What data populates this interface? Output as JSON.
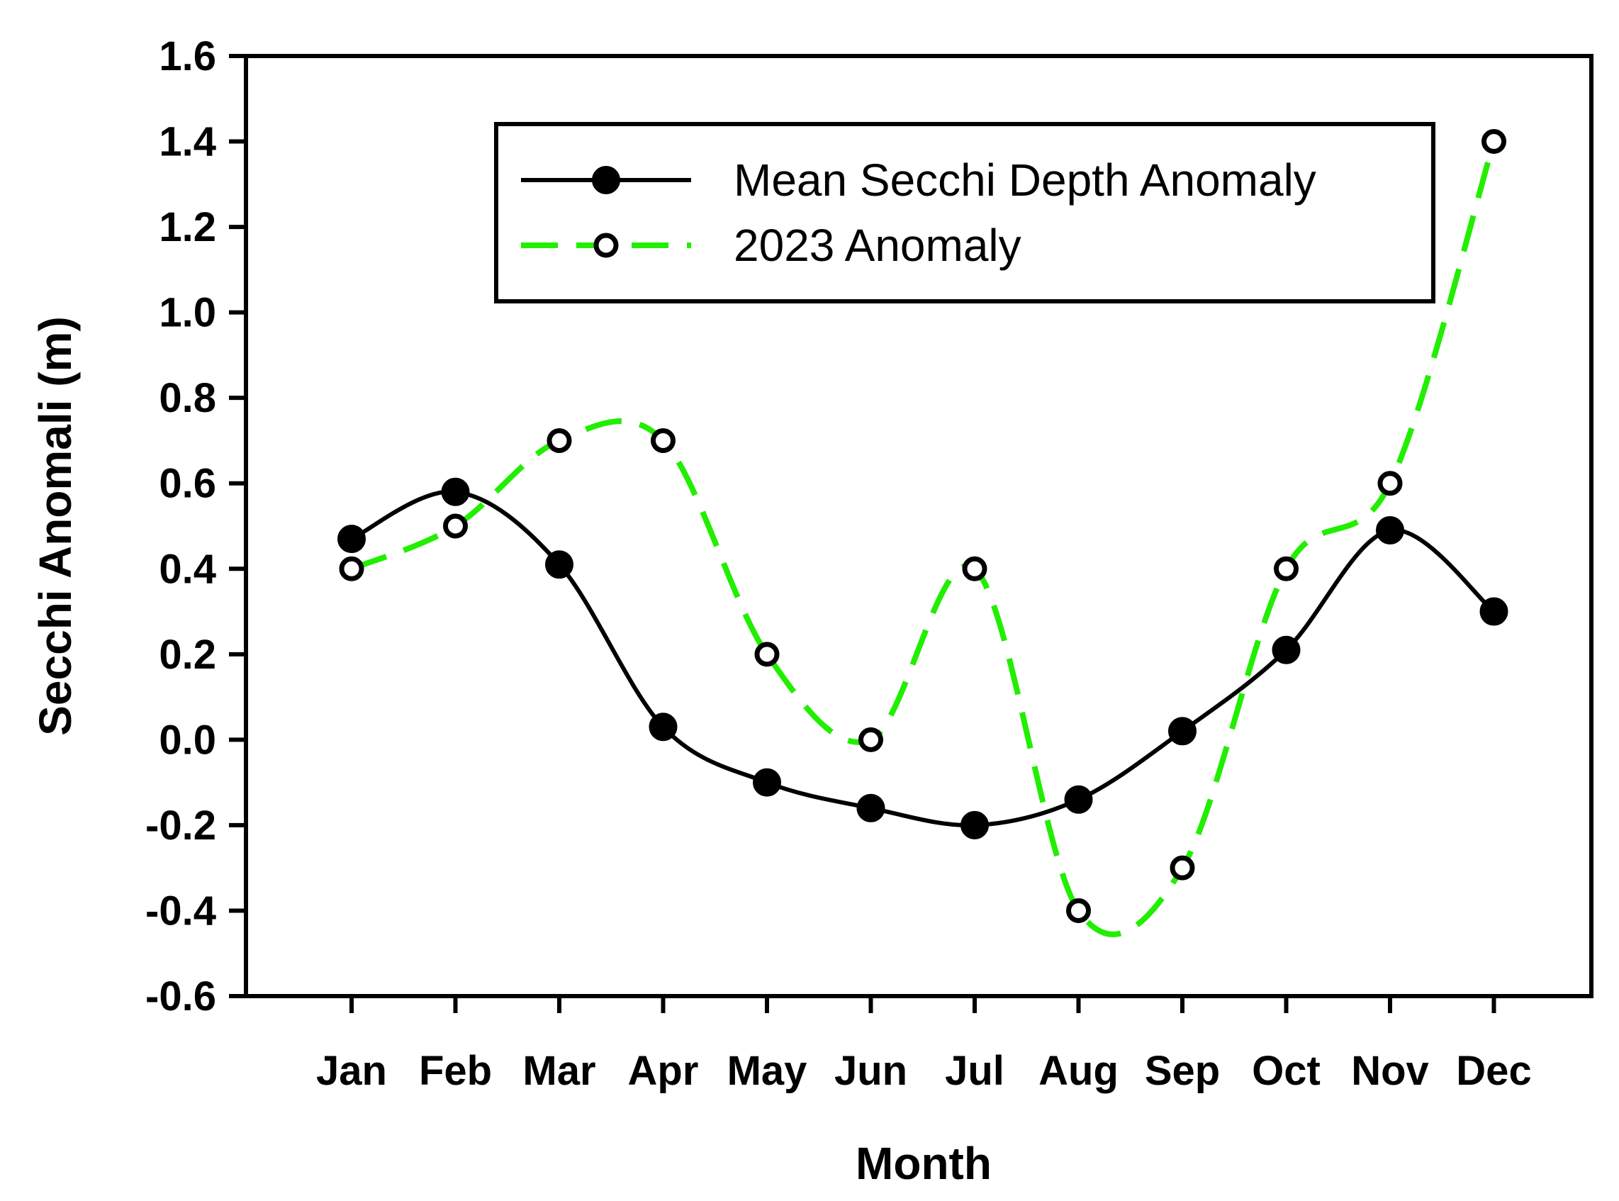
{
  "chart_data": {
    "type": "line",
    "title": "",
    "xlabel": "Month",
    "ylabel": "Secchi Anomali (m)",
    "categories": [
      "Jan",
      "Feb",
      "Mar",
      "Apr",
      "May",
      "Jun",
      "Jul",
      "Aug",
      "Sep",
      "Oct",
      "Nov",
      "Dec"
    ],
    "ylim": [
      -0.6,
      1.6
    ],
    "yticks": [
      "1.6",
      "1.4",
      "1.2",
      "1.0",
      "0.8",
      "0.6",
      "0.4",
      "0.2",
      "0.0",
      "-0.2",
      "-0.4",
      "-0.6"
    ],
    "ytick_values": [
      1.6,
      1.4,
      1.2,
      1.0,
      0.8,
      0.6,
      0.4,
      0.2,
      0.0,
      -0.2,
      -0.4,
      -0.6
    ],
    "grid": false,
    "legend_position": "top-right",
    "series": [
      {
        "name": "Mean Secchi Depth Anomaly",
        "values": [
          0.47,
          0.58,
          0.41,
          0.03,
          -0.1,
          -0.16,
          -0.2,
          -0.14,
          0.02,
          0.21,
          0.49,
          0.3
        ],
        "color": "#000000",
        "line_style": "solid",
        "marker": "filled-circle"
      },
      {
        "name": "2023 Anomaly",
        "values": [
          0.4,
          0.5,
          0.7,
          0.7,
          0.2,
          0.0,
          0.4,
          -0.4,
          -0.3,
          0.4,
          0.6,
          1.4
        ],
        "color": "#22ee00",
        "line_style": "dashed",
        "marker": "open-circle"
      }
    ]
  }
}
